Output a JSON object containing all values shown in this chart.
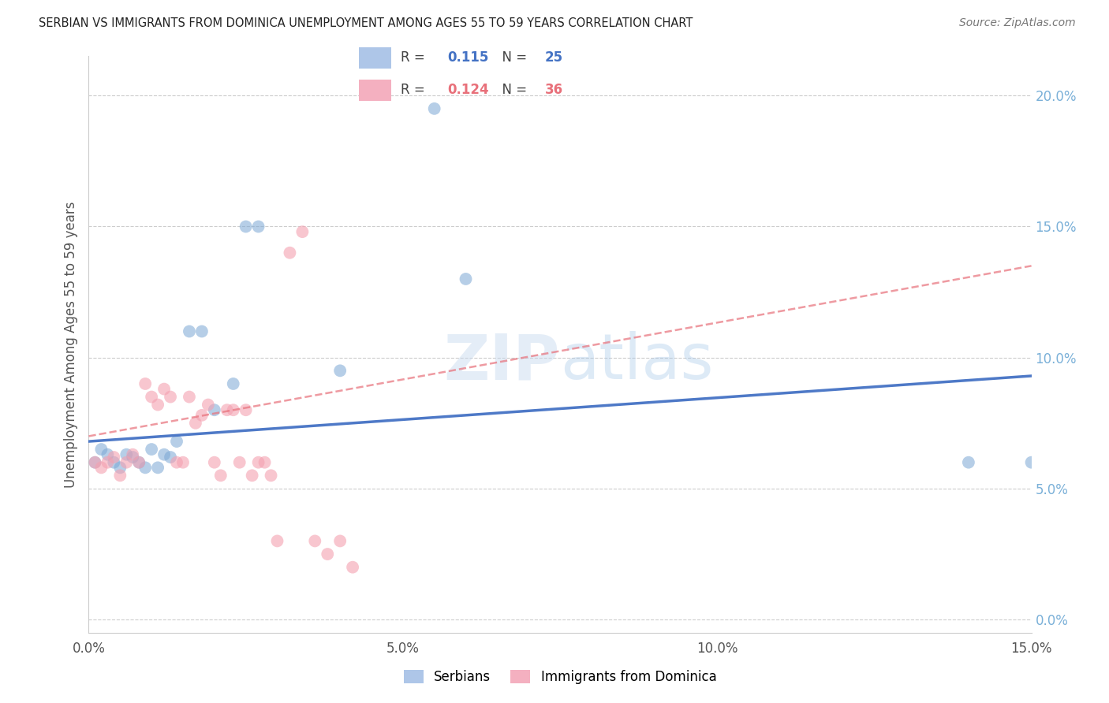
{
  "title": "SERBIAN VS IMMIGRANTS FROM DOMINICA UNEMPLOYMENT AMONG AGES 55 TO 59 YEARS CORRELATION CHART",
  "source": "Source: ZipAtlas.com",
  "ylabel_label": "Unemployment Among Ages 55 to 59 years",
  "watermark": "ZIPatlas",
  "xlim": [
    0.0,
    0.15
  ],
  "ylim": [
    -0.005,
    0.215
  ],
  "serbian_line_color": "#4472c4",
  "dominica_line_color": "#e8707a",
  "serbian_dot_color": "#7aa7d4",
  "dominica_dot_color": "#f4a0b0",
  "background_color": "#ffffff",
  "grid_color": "#cccccc",
  "R_serbian": "0.115",
  "N_serbian": "25",
  "R_dominica": "0.124",
  "N_dominica": "36",
  "serbian_x": [
    0.001,
    0.002,
    0.003,
    0.004,
    0.005,
    0.006,
    0.007,
    0.008,
    0.009,
    0.01,
    0.011,
    0.012,
    0.013,
    0.014,
    0.016,
    0.018,
    0.02,
    0.023,
    0.025,
    0.027,
    0.04,
    0.055,
    0.06,
    0.14,
    0.15
  ],
  "serbian_y": [
    0.06,
    0.065,
    0.063,
    0.06,
    0.058,
    0.063,
    0.062,
    0.06,
    0.058,
    0.065,
    0.058,
    0.063,
    0.062,
    0.068,
    0.11,
    0.11,
    0.08,
    0.09,
    0.15,
    0.15,
    0.095,
    0.195,
    0.13,
    0.06,
    0.06
  ],
  "dominica_x": [
    0.001,
    0.002,
    0.003,
    0.004,
    0.005,
    0.006,
    0.007,
    0.008,
    0.009,
    0.01,
    0.011,
    0.012,
    0.013,
    0.014,
    0.015,
    0.016,
    0.017,
    0.018,
    0.019,
    0.02,
    0.021,
    0.022,
    0.023,
    0.024,
    0.025,
    0.026,
    0.027,
    0.028,
    0.029,
    0.03,
    0.032,
    0.034,
    0.036,
    0.038,
    0.04,
    0.042
  ],
  "dominica_y": [
    0.06,
    0.058,
    0.06,
    0.062,
    0.055,
    0.06,
    0.063,
    0.06,
    0.09,
    0.085,
    0.082,
    0.088,
    0.085,
    0.06,
    0.06,
    0.085,
    0.075,
    0.078,
    0.082,
    0.06,
    0.055,
    0.08,
    0.08,
    0.06,
    0.08,
    0.055,
    0.06,
    0.06,
    0.055,
    0.03,
    0.14,
    0.148,
    0.03,
    0.025,
    0.03,
    0.02
  ]
}
